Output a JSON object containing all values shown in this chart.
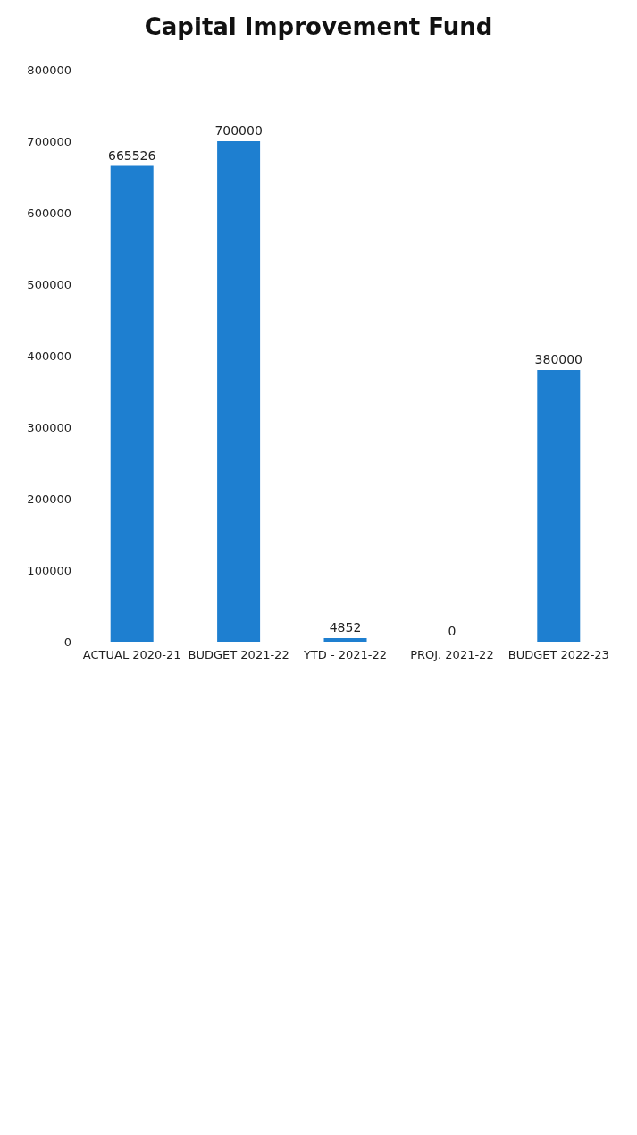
{
  "chart_data": {
    "type": "bar",
    "title": "Capital Improvement Fund",
    "categories": [
      "ACTUAL 2020-21",
      "BUDGET 2021-22",
      "YTD - 2021-22",
      "PROJ. 2021-22",
      "BUDGET 2022-23"
    ],
    "values": [
      665526,
      700000,
      4852,
      0,
      380000
    ],
    "color": "#1e7fd0",
    "ylim": [
      0,
      800000
    ],
    "yticks": [
      0,
      100000,
      200000,
      300000,
      400000,
      500000,
      600000,
      700000,
      800000
    ],
    "grid": false,
    "data_labels": true
  }
}
